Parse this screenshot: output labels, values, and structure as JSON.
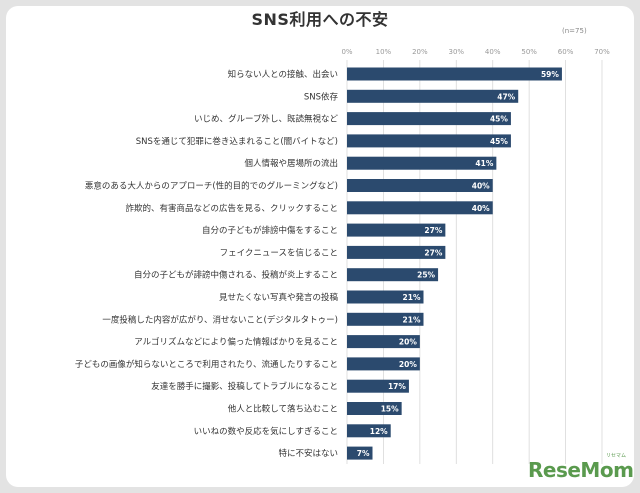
{
  "header": {
    "title": "SNS利用への不安",
    "sample_note": "(n=75)"
  },
  "brand": {
    "logo_text": "ReseMom",
    "ruby_text": "リセマム",
    "logo_color": "#5a9a4e"
  },
  "colors": {
    "bar": "#2b4a6e",
    "bar_label": "#ffffff",
    "grid": "#d8d8d8",
    "tick": "#999999",
    "category_text": "#333333"
  },
  "chart_data": {
    "type": "bar",
    "orientation": "horizontal",
    "title": "SNS利用への不安",
    "xlim": [
      0,
      70
    ],
    "x_ticks": [
      0,
      10,
      20,
      30,
      40,
      50,
      60,
      70
    ],
    "x_tick_labels": [
      "0%",
      "10%",
      "20%",
      "30%",
      "40%",
      "50%",
      "60%",
      "70%"
    ],
    "grid": true,
    "categories": [
      "知らない人との接触、出会い",
      "SNS依存",
      "いじめ、グループ外し、既読無視など",
      "SNSを通じて犯罪に巻き込まれること(闇バイトなど)",
      "個人情報や居場所の流出",
      "悪意のある大人からのアプローチ(性的目的でのグルーミングなど)",
      "詐欺的、有害商品などの広告を見る、クリックすること",
      "自分の子どもが誹謗中傷をすること",
      "フェイクニュースを信じること",
      "自分の子どもが誹謗中傷される、投稿が炎上すること",
      "見せたくない写真や発言の投稿",
      "一度投稿した内容が広がり、消せないこと(デジタルタトゥー)",
      "アルゴリズムなどにより偏った情報ばかりを見ること",
      "子どもの画像が知らないところで利用されたり、流通したりすること",
      "友達を勝手に撮影、投稿してトラブルになること",
      "他人と比較して落ち込むこと",
      "いいねの数や反応を気にしすぎること",
      "特に不安はない"
    ],
    "values": [
      59,
      47,
      45,
      45,
      41,
      40,
      40,
      27,
      27,
      25,
      21,
      21,
      20,
      20,
      17,
      15,
      12,
      7
    ],
    "value_labels": [
      "59%",
      "47%",
      "45%",
      "45%",
      "41%",
      "40%",
      "40%",
      "27%",
      "27%",
      "25%",
      "21%",
      "21%",
      "20%",
      "20%",
      "17%",
      "15%",
      "12%",
      "7%"
    ]
  }
}
